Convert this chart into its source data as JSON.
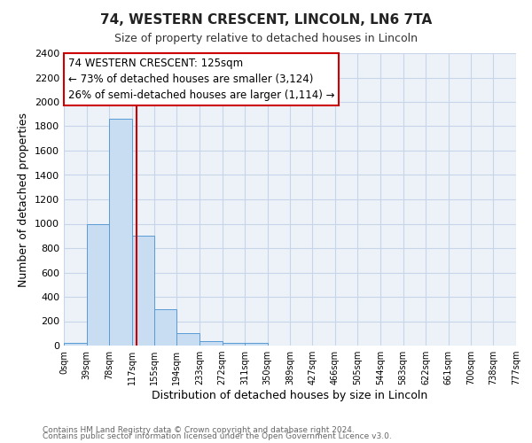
{
  "title": "74, WESTERN CRESCENT, LINCOLN, LN6 7TA",
  "subtitle": "Size of property relative to detached houses in Lincoln",
  "xlabel": "Distribution of detached houses by size in Lincoln",
  "ylabel": "Number of detached properties",
  "bin_edges": [
    0,
    39,
    78,
    117,
    155,
    194,
    233,
    272,
    311,
    350,
    389,
    427,
    466,
    505,
    544,
    583,
    622,
    661,
    700,
    738,
    777
  ],
  "bar_heights": [
    20,
    1000,
    1860,
    900,
    300,
    100,
    40,
    25,
    20,
    0,
    0,
    0,
    0,
    0,
    0,
    0,
    0,
    0,
    0,
    0
  ],
  "bar_color": "#c9ddf2",
  "bar_edge_color": "#5a9bd5",
  "red_line_x": 125,
  "ylim": [
    0,
    2400
  ],
  "yticks": [
    0,
    200,
    400,
    600,
    800,
    1000,
    1200,
    1400,
    1600,
    1800,
    2000,
    2200,
    2400
  ],
  "annotation_title": "74 WESTERN CRESCENT: 125sqm",
  "annotation_line1": "← 73% of detached houses are smaller (3,124)",
  "annotation_line2": "26% of semi-detached houses are larger (1,114) →",
  "annotation_box_color": "#ffffff",
  "annotation_box_edge": "#cc0000",
  "footer1": "Contains HM Land Registry data © Crown copyright and database right 2024.",
  "footer2": "Contains public sector information licensed under the Open Government Licence v3.0.",
  "background_color": "#ffffff",
  "plot_bg_color": "#edf2f9",
  "grid_color": "#c8d4e8"
}
